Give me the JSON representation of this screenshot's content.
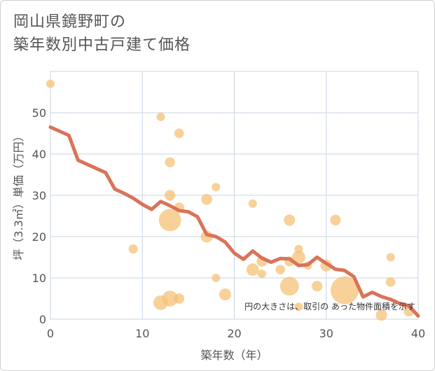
{
  "title": {
    "line1": "岡山県鏡野町の",
    "line2": "築年数別中古戸建て価格"
  },
  "colors": {
    "bubble": "#f5c277",
    "line": "#d9735a",
    "grid": "#c9d4e2",
    "plot_bg": "#ffffff"
  },
  "chart_data": {
    "type": "scatter",
    "title": "岡山県鏡野町の築年数別中古戸建て価格",
    "xlabel": "築年数（年）",
    "ylabel": "坪（3.3㎡）単価（万円）",
    "xlim": [
      0,
      40
    ],
    "ylim": [
      0,
      60
    ],
    "xticks": [
      0,
      10,
      20,
      30,
      40
    ],
    "yticks": [
      0,
      10,
      20,
      30,
      40,
      50
    ],
    "grid": true,
    "note": "円の大きさは、取引の あった物件面積を示す",
    "bubbles": [
      {
        "x": 0,
        "y": 57,
        "size": 1
      },
      {
        "x": 9,
        "y": 17,
        "size": 1.2
      },
      {
        "x": 12,
        "y": 49,
        "size": 1
      },
      {
        "x": 12,
        "y": 4,
        "size": 3
      },
      {
        "x": 13,
        "y": 38,
        "size": 1.4
      },
      {
        "x": 13,
        "y": 30,
        "size": 1.6
      },
      {
        "x": 13,
        "y": 24,
        "size": 7
      },
      {
        "x": 13,
        "y": 5,
        "size": 3.5
      },
      {
        "x": 14,
        "y": 45,
        "size": 1.3
      },
      {
        "x": 14,
        "y": 27,
        "size": 1.5
      },
      {
        "x": 14,
        "y": 5,
        "size": 1.5
      },
      {
        "x": 17,
        "y": 29,
        "size": 1.7
      },
      {
        "x": 17,
        "y": 20,
        "size": 2
      },
      {
        "x": 18,
        "y": 32,
        "size": 1
      },
      {
        "x": 18,
        "y": 10,
        "size": 1
      },
      {
        "x": 19,
        "y": 6,
        "size": 2
      },
      {
        "x": 22,
        "y": 28,
        "size": 1
      },
      {
        "x": 22,
        "y": 12,
        "size": 2.2
      },
      {
        "x": 23,
        "y": 14,
        "size": 1.6
      },
      {
        "x": 23,
        "y": 11,
        "size": 1
      },
      {
        "x": 25,
        "y": 12,
        "size": 1.3
      },
      {
        "x": 26,
        "y": 24,
        "size": 1.8
      },
      {
        "x": 26,
        "y": 14,
        "size": 1.4
      },
      {
        "x": 26,
        "y": 8,
        "size": 5
      },
      {
        "x": 27,
        "y": 17,
        "size": 1
      },
      {
        "x": 27,
        "y": 15,
        "size": 2.5
      },
      {
        "x": 27,
        "y": 3,
        "size": 1
      },
      {
        "x": 28,
        "y": 13,
        "size": 1
      },
      {
        "x": 29,
        "y": 8,
        "size": 1.6
      },
      {
        "x": 30,
        "y": 13,
        "size": 2
      },
      {
        "x": 31,
        "y": 24,
        "size": 1.6
      },
      {
        "x": 32,
        "y": 7,
        "size": 11
      },
      {
        "x": 36,
        "y": 1,
        "size": 1.8
      },
      {
        "x": 37,
        "y": 15,
        "size": 1
      },
      {
        "x": 37,
        "y": 9,
        "size": 1.3
      },
      {
        "x": 39,
        "y": 2,
        "size": 1.6
      }
    ],
    "trend": {
      "x": [
        0,
        2,
        3,
        4,
        5,
        6,
        7,
        8,
        9,
        10,
        11,
        12,
        13,
        14,
        15,
        16,
        17,
        18,
        19,
        20,
        21,
        22,
        23,
        24,
        25,
        26,
        27,
        28,
        29,
        30,
        31,
        32,
        33,
        34,
        35,
        36,
        37,
        38,
        39,
        40
      ],
      "y": [
        46.5,
        44.5,
        38.5,
        37.5,
        36.5,
        35.5,
        31.5,
        30.5,
        29.3,
        27.8,
        26.6,
        28.5,
        27.5,
        26.3,
        26,
        24.8,
        20.5,
        20,
        18.7,
        16,
        14.5,
        16.5,
        14.8,
        13.8,
        14.7,
        14.6,
        13,
        13.2,
        15,
        13.5,
        12.1,
        11.8,
        10.3,
        5.4,
        6.5,
        5.5,
        4.8,
        3.8,
        3.2,
        0.8
      ]
    }
  }
}
